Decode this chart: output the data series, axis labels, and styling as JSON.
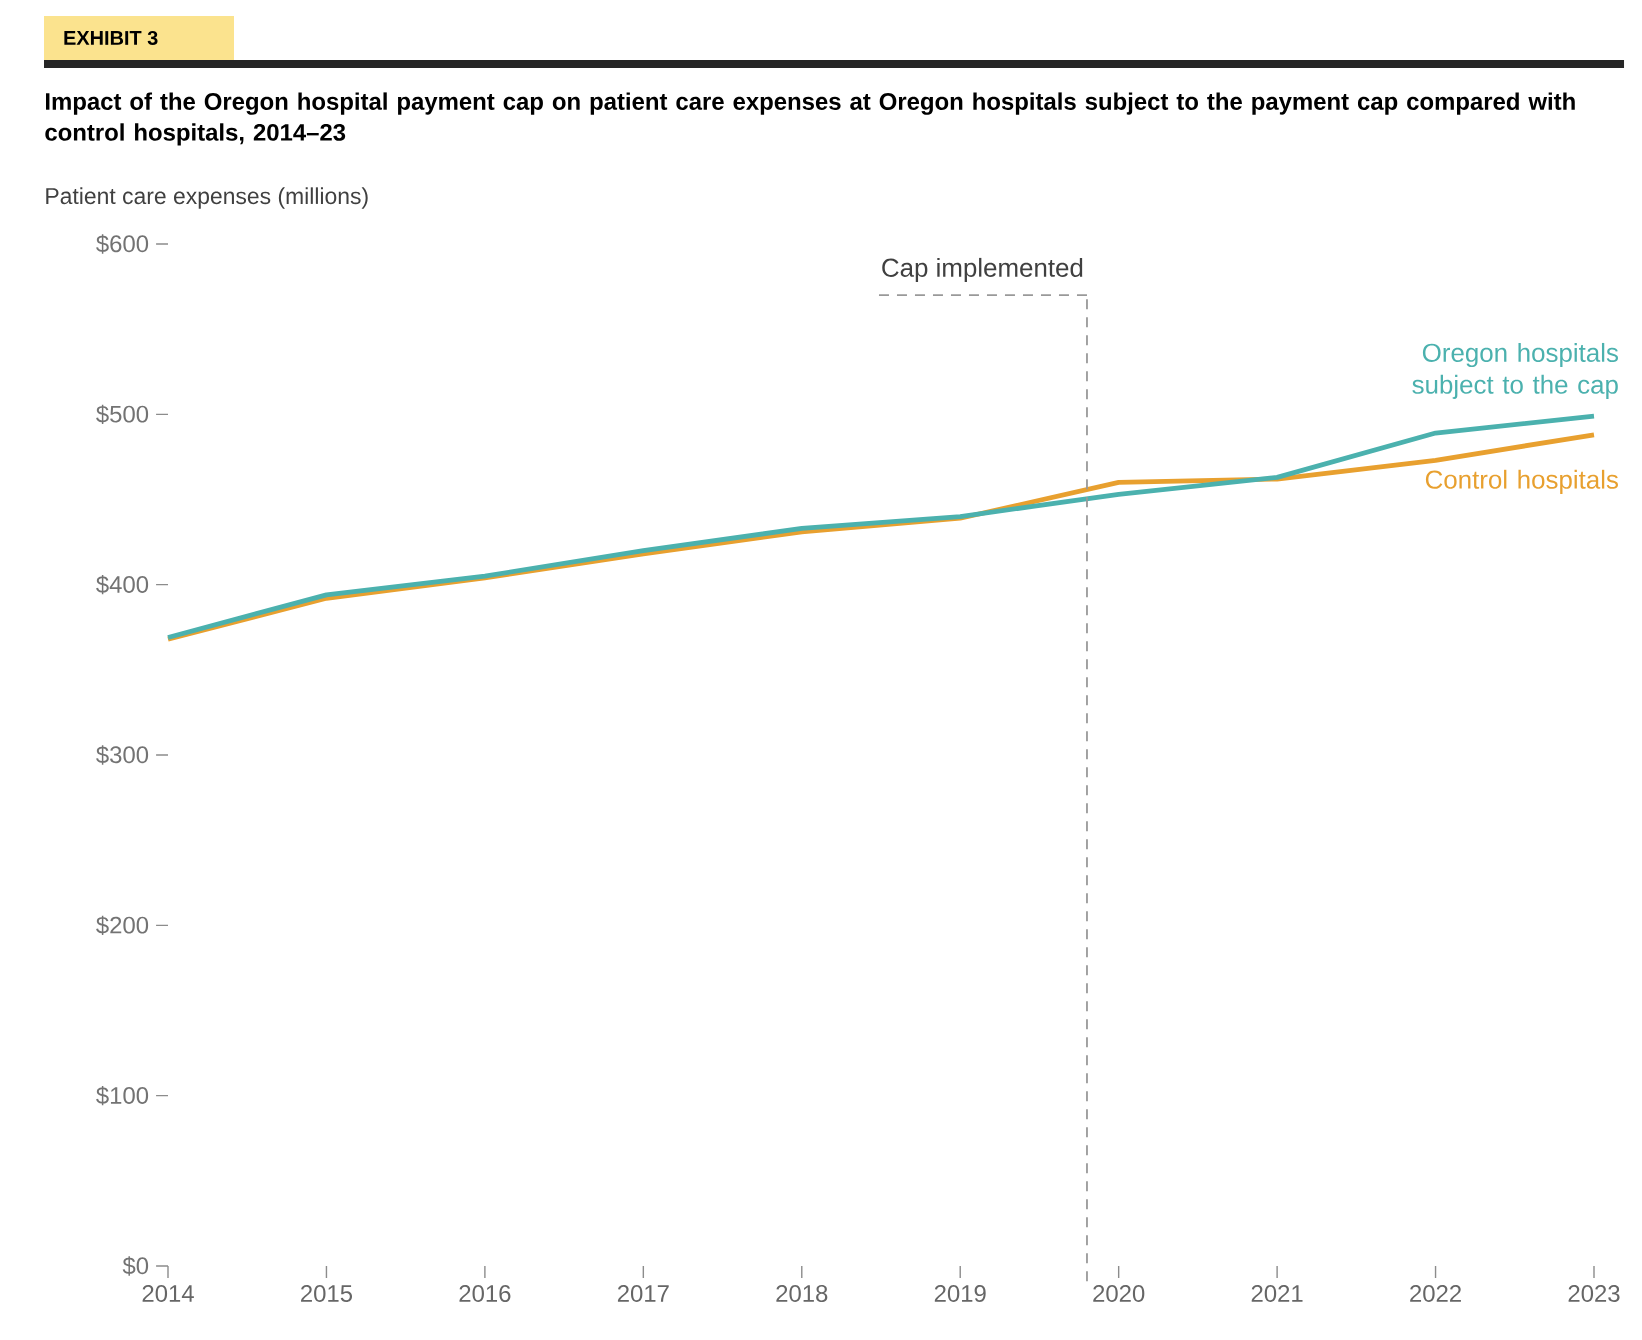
{
  "chart_data": {
    "type": "line",
    "title": "Impact of the Oregon hospital payment cap on patient care expenses at Oregon hospitals subject to the payment cap compared with control hospitals, 2014–23",
    "ylabel": "Patient care expenses (millions)",
    "annotations": [
      "EXHIBIT 3"
    ],
    "x": [
      2014,
      2015,
      2016,
      2017,
      2018,
      2019,
      2020,
      2021,
      2022,
      2023
    ],
    "series": [
      {
        "name": "Control hospitals",
        "color": "#e8a02f",
        "values": [
          368,
          392,
          404,
          418,
          431,
          439,
          460,
          462,
          473,
          488
        ]
      },
      {
        "name": "Oregon hospitals subject to the cap",
        "color": "#4bb1ae",
        "values": [
          369,
          394,
          405,
          420,
          433,
          440,
          453,
          463,
          489,
          499
        ]
      }
    ],
    "xlim": [
      2014,
      2023
    ],
    "xticks": [
      2014,
      2015,
      2016,
      2017,
      2018,
      2019,
      2020,
      2021,
      2022,
      2023
    ],
    "ylim": [
      0,
      600
    ],
    "yticks": [
      {
        "value": 0,
        "label": "$0"
      },
      {
        "value": 100,
        "label": "$100"
      },
      {
        "value": 200,
        "label": "$200"
      },
      {
        "value": 300,
        "label": "$300"
      },
      {
        "value": 400,
        "label": "$400"
      },
      {
        "value": 500,
        "label": "$500"
      },
      {
        "value": 600,
        "label": "$600"
      }
    ],
    "ref_lines": [
      {
        "axis": "x",
        "value": 2019.8,
        "label": "Cap implemented",
        "color": "#999999",
        "line_style": "dashed"
      }
    ],
    "grid": false,
    "legend": false,
    "marker": "none",
    "line_style": "solid"
  }
}
